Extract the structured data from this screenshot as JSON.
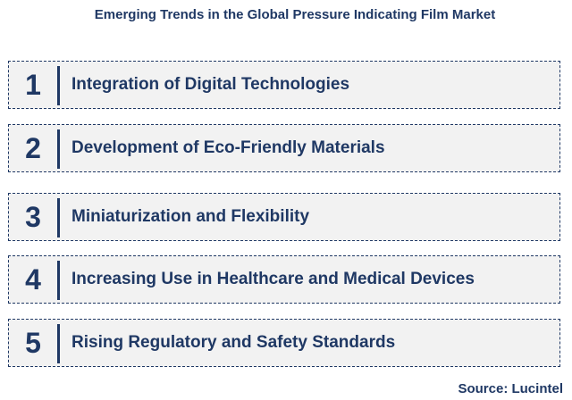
{
  "title": "Emerging Trends in the Global Pressure Indicating Film Market",
  "items": [
    {
      "number": "1",
      "label": "Integration of Digital Technologies"
    },
    {
      "number": "2",
      "label": "Development of Eco-Friendly Materials"
    },
    {
      "number": "3",
      "label": "Miniaturization and Flexibility"
    },
    {
      "number": "4",
      "label": "Increasing Use in Healthcare and Medical Devices"
    },
    {
      "number": "5",
      "label": "Rising Regulatory and Safety Standards"
    }
  ],
  "source": "Source: Lucintel"
}
